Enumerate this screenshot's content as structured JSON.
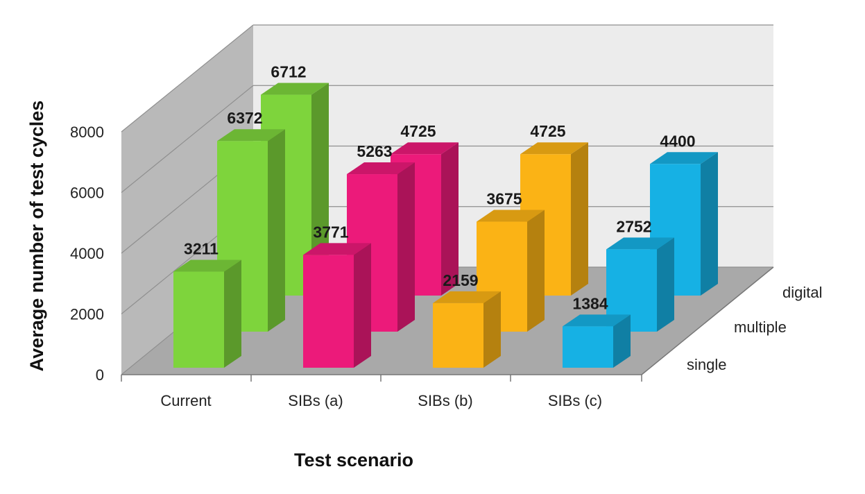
{
  "chart_data": {
    "type": "bar",
    "subtype": "3d-clustered",
    "categories": [
      "Current",
      "SIBs (a)",
      "SIBs (b)",
      "SIBs (c)"
    ],
    "series": [
      {
        "name": "single",
        "values": [
          3211,
          3771,
          2159,
          1384
        ]
      },
      {
        "name": "multiple",
        "values": [
          6372,
          5263,
          3675,
          2752
        ]
      },
      {
        "name": "digital",
        "values": [
          6712,
          4725,
          4725,
          4400
        ]
      }
    ],
    "category_colors": [
      "#7ed43c",
      "#ec1a7a",
      "#fbb315",
      "#16b1e4"
    ],
    "xlabel": "Test scenario",
    "ylabel": "Average number of test cycles",
    "ylim": [
      0,
      8000
    ],
    "yticks": [
      "0",
      "2000",
      "4000",
      "6000",
      "8000"
    ],
    "grid": true
  }
}
